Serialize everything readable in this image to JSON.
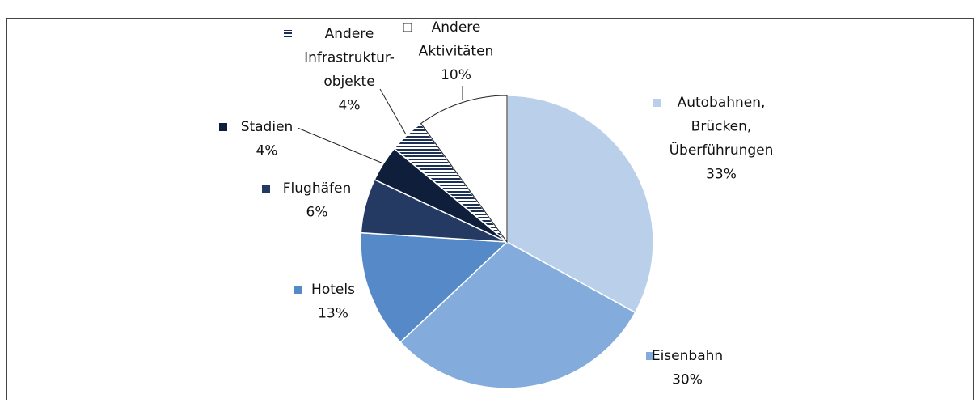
{
  "chart_data": {
    "type": "pie",
    "categories": [
      "Autobahnen,\nBrücken,\nÜberführungen",
      "Eisenbahn",
      "Hotels",
      "Flughäfen",
      "Stadien",
      "Andere\nInfrastruktur-\nobjekte",
      "Andere\nAktivitäten"
    ],
    "values": [
      33,
      30,
      13,
      6,
      4,
      4,
      10
    ],
    "value_labels": [
      "33%",
      "30%",
      "13%",
      "6%",
      "4%",
      "4%",
      "10%"
    ],
    "colors": [
      "#b9cfea",
      "#83acdc",
      "#5589c8",
      "#243a62",
      "#0f1e3a",
      "striped",
      "#ffffff"
    ]
  }
}
